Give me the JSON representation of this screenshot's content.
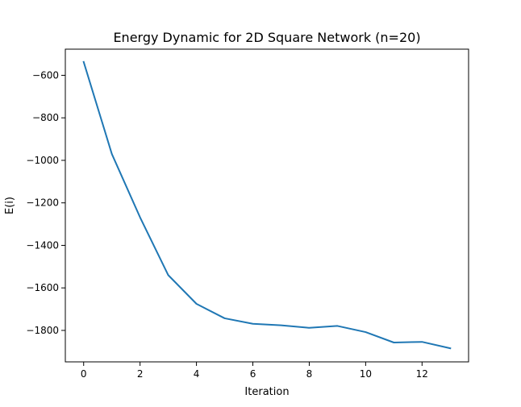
{
  "chart_data": {
    "type": "line",
    "title": "Energy Dynamic for 2D Square Network (n=20)",
    "xlabel": "Iteration",
    "ylabel": "E(i)",
    "xlim": [
      -0.65,
      13.65
    ],
    "ylim": [
      -1948,
      -477
    ],
    "x_ticks": [
      0,
      2,
      4,
      6,
      8,
      10,
      12
    ],
    "y_ticks": [
      -1800,
      -1600,
      -1400,
      -1200,
      -1000,
      -800,
      -600
    ],
    "x_tick_labels": [
      "0",
      "2",
      "4",
      "6",
      "8",
      "10",
      "12"
    ],
    "y_tick_labels": [
      "−1800",
      "−1600",
      "−1400",
      "−1200",
      "−1000",
      "−800",
      "−600"
    ],
    "grid": false,
    "legend": "none",
    "series": [
      {
        "color": "#1f77b4",
        "x": [
          0,
          1,
          2,
          3,
          4,
          5,
          6,
          7,
          8,
          9,
          10,
          11,
          12,
          13
        ],
        "y": [
          -537,
          -970,
          -1268,
          -1540,
          -1675,
          -1743,
          -1769,
          -1776,
          -1788,
          -1779,
          -1808,
          -1857,
          -1854,
          -1884
        ]
      }
    ]
  }
}
